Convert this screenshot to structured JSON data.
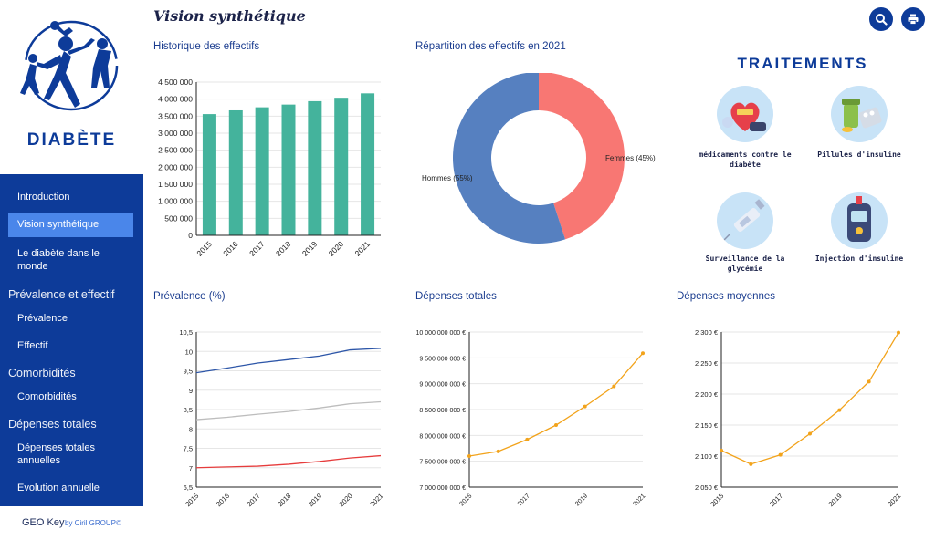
{
  "app": {
    "brand": "DIABÈTE",
    "page_title": "Vision synthétique"
  },
  "nav": {
    "items": [
      {
        "label": "Introduction"
      },
      {
        "label": "Vision synthétique"
      },
      {
        "label": "Le diabète dans le monde"
      },
      {
        "section": "Prévalence et effectif"
      },
      {
        "label": "Prévalence"
      },
      {
        "label": "Effectif"
      },
      {
        "section": "Comorbidités"
      },
      {
        "label": "Comorbidités"
      },
      {
        "section": "Dépenses totales"
      },
      {
        "label": "Dépenses totales annuelles"
      },
      {
        "label": "Evolution annuelle"
      }
    ]
  },
  "footer": {
    "product": "GEO Key",
    "by": "by Ciril GROUP©"
  },
  "toolbar": {
    "search_icon": "search-icon",
    "print_icon": "print-icon"
  },
  "treatments": {
    "title": "TRAITEMENTS",
    "items": [
      {
        "label": "médicaments contre le diabète",
        "icon": "heart-pill-icon"
      },
      {
        "label": "Pillules d'insuline",
        "icon": "pill-bottle-icon"
      },
      {
        "label": "Surveillance de la glycémie",
        "icon": "syringe-icon"
      },
      {
        "label": "Injection d'insuline",
        "icon": "glucometer-icon"
      }
    ]
  },
  "colors": {
    "primary": "#0d3b99",
    "active": "#4a86ea",
    "bar": "#44b39c",
    "femmes": "#f87773",
    "hommes": "#5680c0",
    "orange": "#f2a31b"
  },
  "chart_data": [
    {
      "id": "effectifs",
      "type": "bar",
      "title": "Historique des effectifs",
      "categories": [
        "2015",
        "2016",
        "2017",
        "2018",
        "2019",
        "2020",
        "2021"
      ],
      "values": [
        3560000,
        3670000,
        3760000,
        3840000,
        3940000,
        4040000,
        4170000
      ],
      "ylim": [
        0,
        4500000
      ],
      "yticks": [
        "0",
        "500 000",
        "1 000 000",
        "1 500 000",
        "2 000 000",
        "2 500 000",
        "3 000 000",
        "3 500 000",
        "4 000 000",
        "4 500 000"
      ],
      "grid": true
    },
    {
      "id": "repartition",
      "type": "pie",
      "title": "Répartition des effectifs en 2021",
      "slices": [
        {
          "label": "Femmes (45%)",
          "value": 45,
          "color": "#f87773"
        },
        {
          "label": "Hommes (55%)",
          "value": 55,
          "color": "#5680c0"
        }
      ]
    },
    {
      "id": "prevalence",
      "type": "line",
      "title": "Prévalence (%)",
      "x": [
        "2015",
        "2016",
        "2017",
        "2018",
        "2019",
        "2020",
        "2021"
      ],
      "series": [
        {
          "values": [
            9.45,
            9.57,
            9.7,
            9.79,
            9.88,
            10.04,
            10.08
          ],
          "color": "#2d56a8"
        },
        {
          "values": [
            8.24,
            8.3,
            8.38,
            8.45,
            8.54,
            8.65,
            8.7
          ],
          "color": "#bdbdbd"
        },
        {
          "values": [
            7.0,
            7.02,
            7.04,
            7.09,
            7.16,
            7.25,
            7.31
          ],
          "color": "#e63c3c"
        }
      ],
      "ylim": [
        6.5,
        10.5
      ],
      "yticks": [
        "6,5",
        "7",
        "7,5",
        "8",
        "8,5",
        "9",
        "9,5",
        "10",
        "10,5"
      ],
      "grid": true
    },
    {
      "id": "depenses_totales",
      "type": "line",
      "title": "Dépenses totales",
      "x": [
        "2015",
        "2016",
        "2017",
        "2018",
        "2019",
        "2020",
        "2021"
      ],
      "xticks": [
        "2015",
        "2017",
        "2019",
        "2021"
      ],
      "series": [
        {
          "values": [
            7600000000,
            7690000000,
            7920000000,
            8200000000,
            8560000000,
            8950000000,
            9590000000
          ],
          "color": "#f2a31b"
        }
      ],
      "ylim": [
        7000000000,
        10000000000
      ],
      "yticks": [
        "7 000 000 000 €",
        "7 500 000 000 €",
        "8 000 000 000 €",
        "8 500 000 000 €",
        "9 000 000 000 €",
        "9 500 000 000 €",
        "10 000 000 000 €"
      ],
      "grid": true
    },
    {
      "id": "depenses_moyennes",
      "type": "line",
      "title": "Dépenses moyennes",
      "x": [
        "2015",
        "2016",
        "2017",
        "2018",
        "2019",
        "2020",
        "2021"
      ],
      "xticks": [
        "2015",
        "2017",
        "2019",
        "2021"
      ],
      "series": [
        {
          "values": [
            2109,
            2087,
            2102,
            2136,
            2174,
            2220,
            2299
          ],
          "color": "#f2a31b"
        }
      ],
      "ylim": [
        2050,
        2300
      ],
      "yticks": [
        "2 050 €",
        "2 100 €",
        "2 150 €",
        "2 200 €",
        "2 250 €",
        "2 300 €"
      ],
      "grid": true
    }
  ]
}
